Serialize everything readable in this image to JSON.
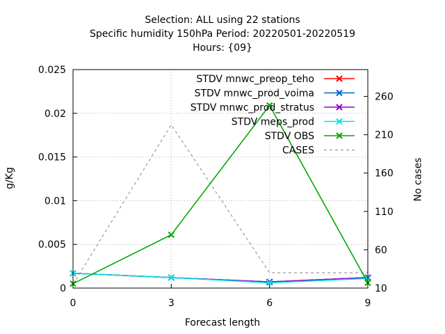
{
  "chart_data": {
    "type": "line",
    "title_lines": [
      "Selection: ALL using    22 stations",
      "Specific humidity 150hPa   Period: 20220501-20220519",
      "Hours: {09}"
    ],
    "xlabel": "Forecast length",
    "ylabel": "g/Kg",
    "y2label": "No cases",
    "x": [
      0,
      3,
      6,
      9
    ],
    "xlim": [
      0,
      9
    ],
    "ylim": [
      0,
      0.025
    ],
    "y2lim": [
      10,
      295
    ],
    "x_ticks": [
      "0",
      "3",
      "6",
      "9"
    ],
    "y_ticks": [
      "0",
      "0.005",
      "0.01",
      "0.015",
      "0.02",
      "0.025"
    ],
    "y2_ticks": [
      "10",
      "60",
      "110",
      "160",
      "210",
      "260"
    ],
    "grid": true,
    "legend_position": "top-right",
    "series": [
      {
        "name": "STDV mnwc_preop_teho",
        "color": "#ff0000",
        "axis": "y",
        "marker": "x",
        "values": [
          0.0017,
          0.0012,
          0.0007,
          0.0012
        ]
      },
      {
        "name": "STDV mnwc_prod_voima",
        "color": "#0066cc",
        "axis": "y",
        "marker": "x",
        "values": [
          0.0017,
          0.0012,
          0.0007,
          0.0012
        ]
      },
      {
        "name": "STDV mnwc_prod_stratus",
        "color": "#9900cc",
        "axis": "y",
        "marker": "x",
        "values": [
          0.0017,
          0.0012,
          0.0007,
          0.0012
        ]
      },
      {
        "name": "STDV meps_prod",
        "color": "#00e5e5",
        "axis": "y",
        "marker": "x",
        "values": [
          0.0017,
          0.0012,
          0.0006,
          0.0011
        ]
      },
      {
        "name": "STDV OBS",
        "color": "#00aa00",
        "axis": "y",
        "marker": "x",
        "values": [
          0.0005,
          0.0061,
          0.0209,
          0.0006
        ]
      },
      {
        "name": "CASES",
        "color": "#999999",
        "axis": "y2",
        "marker": "none",
        "dashed": true,
        "values": [
          15,
          223,
          30,
          30
        ]
      }
    ]
  }
}
